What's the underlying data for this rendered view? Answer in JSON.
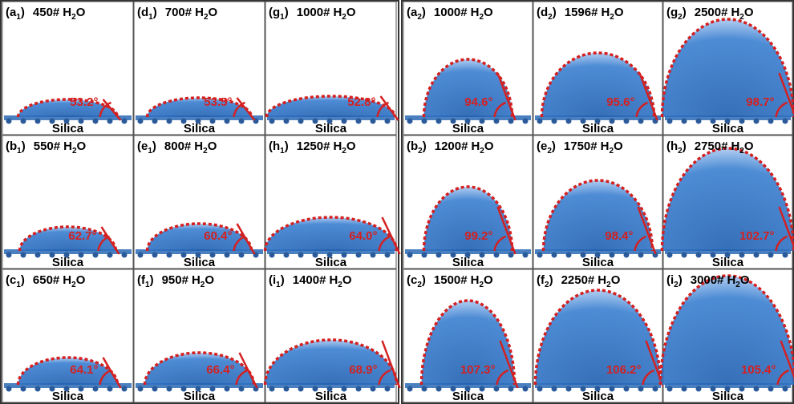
{
  "panels": [
    {
      "prefix": "(a",
      "index": "1",
      "suffix": ")",
      "count": "450#",
      "formula": "H",
      "formula_sub": "2",
      "formula_end": "O",
      "angle": "53.2°",
      "substrate": "Silica"
    },
    {
      "prefix": "(d",
      "index": "1",
      "suffix": ")",
      "count": "700#",
      "formula": "H",
      "formula_sub": "2",
      "formula_end": "O",
      "angle": "53.5°",
      "substrate": "Silica"
    },
    {
      "prefix": "(g",
      "index": "1",
      "suffix": ")",
      "count": "1000#",
      "formula": "H",
      "formula_sub": "2",
      "formula_end": "O",
      "angle": "52.8°",
      "substrate": "Silica"
    },
    {
      "prefix": "(b",
      "index": "1",
      "suffix": ")",
      "count": "550#",
      "formula": "H",
      "formula_sub": "2",
      "formula_end": "O",
      "angle": "62.7°",
      "substrate": "Silica"
    },
    {
      "prefix": "(e",
      "index": "1",
      "suffix": ")",
      "count": "800#",
      "formula": "H",
      "formula_sub": "2",
      "formula_end": "O",
      "angle": "60.4°",
      "substrate": "Silica"
    },
    {
      "prefix": "(h",
      "index": "1",
      "suffix": ")",
      "count": "1250#",
      "formula": "H",
      "formula_sub": "2",
      "formula_end": "O",
      "angle": "64.0°",
      "substrate": "Silica"
    },
    {
      "prefix": "(c",
      "index": "1",
      "suffix": ")",
      "count": "650#",
      "formula": "H",
      "formula_sub": "2",
      "formula_end": "O",
      "angle": "64.1°",
      "substrate": "Silica"
    },
    {
      "prefix": "(f",
      "index": "1",
      "suffix": ")",
      "count": "950#",
      "formula": "H",
      "formula_sub": "2",
      "formula_end": "O",
      "angle": "66.4°",
      "substrate": "Silica"
    },
    {
      "prefix": "(i",
      "index": "1",
      "suffix": ")",
      "count": "1400#",
      "formula": "H",
      "formula_sub": "2",
      "formula_end": "O",
      "angle": "68.9°",
      "substrate": "Silica"
    },
    {
      "prefix": "(a",
      "index": "2",
      "suffix": ")",
      "count": "1000#",
      "formula": "H",
      "formula_sub": "2",
      "formula_end": "O",
      "angle": "94.6°",
      "substrate": "Silica"
    },
    {
      "prefix": "(d",
      "index": "2",
      "suffix": ")",
      "count": "1596#",
      "formula": "H",
      "formula_sub": "2",
      "formula_end": "O",
      "angle": "95.6°",
      "substrate": "Silica"
    },
    {
      "prefix": "(g",
      "index": "2",
      "suffix": ")",
      "count": "2500#",
      "formula": "H",
      "formula_sub": "2",
      "formula_end": "O",
      "angle": "98.7°",
      "substrate": "Silica"
    },
    {
      "prefix": "(b",
      "index": "2",
      "suffix": ")",
      "count": "1200#",
      "formula": "H",
      "formula_sub": "2",
      "formula_end": "O",
      "angle": "99.2°",
      "substrate": "Silica"
    },
    {
      "prefix": "(e",
      "index": "2",
      "suffix": ")",
      "count": "1750#",
      "formula": "H",
      "formula_sub": "2",
      "formula_end": "O",
      "angle": "98.4°",
      "substrate": "Silica"
    },
    {
      "prefix": "(h",
      "index": "2",
      "suffix": ")",
      "count": "2750#",
      "formula": "H",
      "formula_sub": "2",
      "formula_end": "O",
      "angle": "102.7°",
      "substrate": "Silica"
    },
    {
      "prefix": "(c",
      "index": "2",
      "suffix": ")",
      "count": "1500#",
      "formula": "H",
      "formula_sub": "2",
      "formula_end": "O",
      "angle": "107.3°",
      "substrate": "Silica"
    },
    {
      "prefix": "(f",
      "index": "2",
      "suffix": ")",
      "count": "2250#",
      "formula": "H",
      "formula_sub": "2",
      "formula_end": "O",
      "angle": "106.2°",
      "substrate": "Silica"
    },
    {
      "prefix": "(i",
      "index": "2",
      "suffix": ")",
      "count": "3000#",
      "formula": "H",
      "formula_sub": "2",
      "formula_end": "O",
      "angle": "105.4°",
      "substrate": "Silica"
    }
  ]
}
